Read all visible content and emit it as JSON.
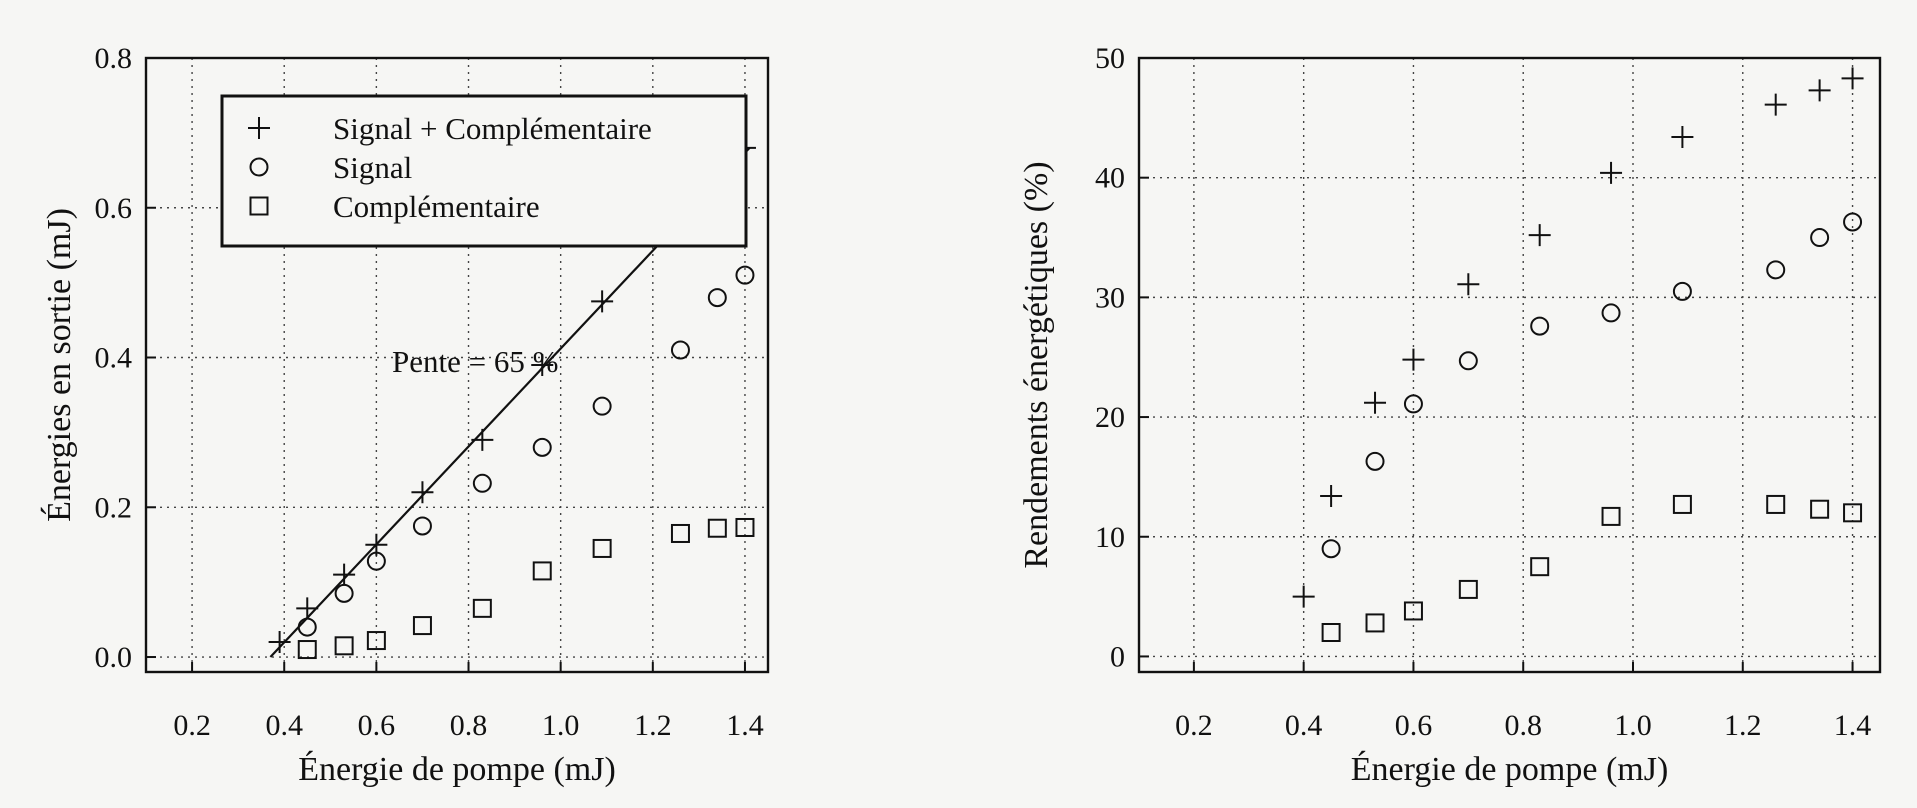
{
  "chart_data": [
    {
      "type": "scatter",
      "xlabel": "Énergie de pompe (mJ)",
      "ylabel": "Énergies en sortie (mJ)",
      "xlim": [
        0.1,
        1.45
      ],
      "ylim": [
        -0.02,
        0.8
      ],
      "xticks": [
        "0.2",
        "0.4",
        "0.6",
        "0.8",
        "1.0",
        "1.2",
        "1.4"
      ],
      "yticks": [
        "0.0",
        "0.2",
        "0.4",
        "0.6",
        "0.8"
      ],
      "grid": true,
      "legend_position": "top-left",
      "annotation": "Pente = 65 %",
      "fit_line": {
        "x": [
          0.37,
          1.41
        ],
        "y": [
          0.0,
          0.68
        ]
      },
      "series": [
        {
          "name": "Signal + Complémentaire",
          "marker": "plus",
          "x": [
            0.39,
            0.45,
            0.53,
            0.6,
            0.7,
            0.83,
            0.96,
            1.09,
            1.26,
            1.34,
            1.4
          ],
          "y": [
            0.02,
            0.065,
            0.11,
            0.15,
            0.22,
            0.29,
            0.39,
            0.475,
            0.585,
            0.635,
            0.68
          ]
        },
        {
          "name": "Signal",
          "marker": "circle",
          "x": [
            0.45,
            0.53,
            0.6,
            0.7,
            0.83,
            0.96,
            1.09,
            1.26,
            1.34,
            1.4
          ],
          "y": [
            0.04,
            0.085,
            0.128,
            0.175,
            0.232,
            0.28,
            0.335,
            0.41,
            0.48,
            0.51
          ]
        },
        {
          "name": "Complémentaire",
          "marker": "square",
          "x": [
            0.45,
            0.53,
            0.6,
            0.7,
            0.83,
            0.96,
            1.09,
            1.26,
            1.34,
            1.4
          ],
          "y": [
            0.01,
            0.015,
            0.022,
            0.042,
            0.065,
            0.115,
            0.145,
            0.165,
            0.172,
            0.173
          ]
        }
      ]
    },
    {
      "type": "scatter",
      "xlabel": "Énergie de pompe (mJ)",
      "ylabel": "Rendements énergétiques (%)",
      "xlim": [
        0.1,
        1.45
      ],
      "ylim": [
        -1.3,
        50
      ],
      "xticks": [
        "0.2",
        "0.4",
        "0.6",
        "0.8",
        "1.0",
        "1.2",
        "1.4"
      ],
      "yticks": [
        "0",
        "10",
        "20",
        "30",
        "40",
        "50"
      ],
      "grid": true,
      "series": [
        {
          "name": "Signal + Complémentaire",
          "marker": "plus",
          "x": [
            0.4,
            0.45,
            0.53,
            0.6,
            0.7,
            0.83,
            0.96,
            1.09,
            1.26,
            1.34,
            1.4
          ],
          "y": [
            5,
            13.4,
            21.2,
            24.8,
            31.1,
            35.2,
            40.4,
            43.4,
            46.1,
            47.3,
            48.3
          ]
        },
        {
          "name": "Signal",
          "marker": "circle",
          "x": [
            0.45,
            0.53,
            0.6,
            0.7,
            0.83,
            0.96,
            1.09,
            1.26,
            1.34,
            1.4
          ],
          "y": [
            9,
            16.3,
            21.1,
            24.7,
            27.6,
            28.7,
            30.5,
            32.3,
            35,
            36.3
          ]
        },
        {
          "name": "Complémentaire",
          "marker": "square",
          "x": [
            0.45,
            0.53,
            0.6,
            0.7,
            0.83,
            0.96,
            1.09,
            1.26,
            1.34,
            1.4
          ],
          "y": [
            2,
            2.8,
            3.8,
            5.6,
            7.5,
            11.7,
            12.7,
            12.7,
            12.3,
            12
          ]
        }
      ]
    }
  ]
}
